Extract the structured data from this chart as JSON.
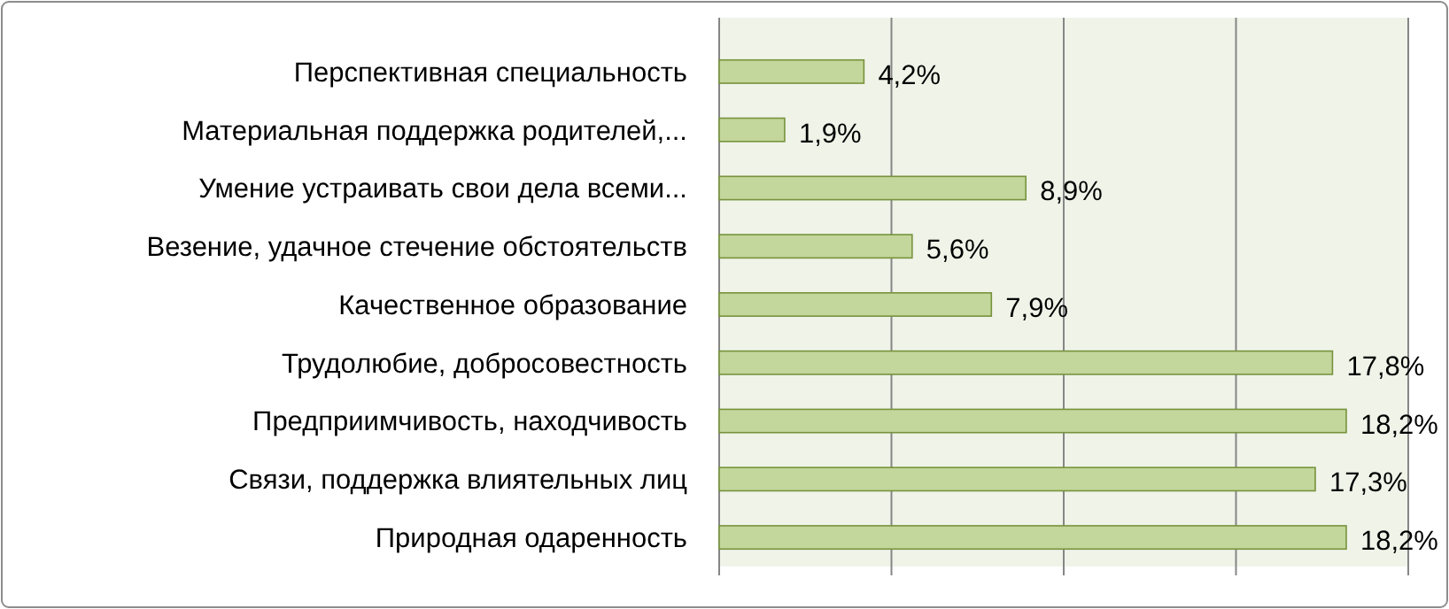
{
  "chart_data": {
    "type": "bar",
    "orientation": "horizontal",
    "categories": [
      "Перспективная специальность",
      "Материальная поддержка родителей,...",
      "Умение устраивать свои дела всеми...",
      "Везение,  удачное стечение обстоятельств",
      "Качественное образование",
      "Трудолюбие, добросовестность",
      "Предприимчивость, находчивость",
      "Связи, поддержка влиятельных лиц",
      "Природная одаренность"
    ],
    "values": [
      4.2,
      1.9,
      8.9,
      5.6,
      7.9,
      17.8,
      18.2,
      17.3,
      18.2
    ],
    "value_labels": [
      "4,2%",
      "1,9%",
      "8,9%",
      "5,6%",
      "7,9%",
      "17,8%",
      "18,2%",
      "17,3%",
      "18,2%"
    ],
    "color": "#c3d69b",
    "xlim": [
      0,
      20
    ],
    "xticks": [
      {
        "value": 0,
        "label": null
      },
      {
        "value": 5,
        "label": null
      },
      {
        "value": 10,
        "label": null
      },
      {
        "value": 15,
        "label": null
      },
      {
        "value": 20,
        "label": null
      }
    ],
    "grid": "x",
    "tick_labels": "y"
  }
}
